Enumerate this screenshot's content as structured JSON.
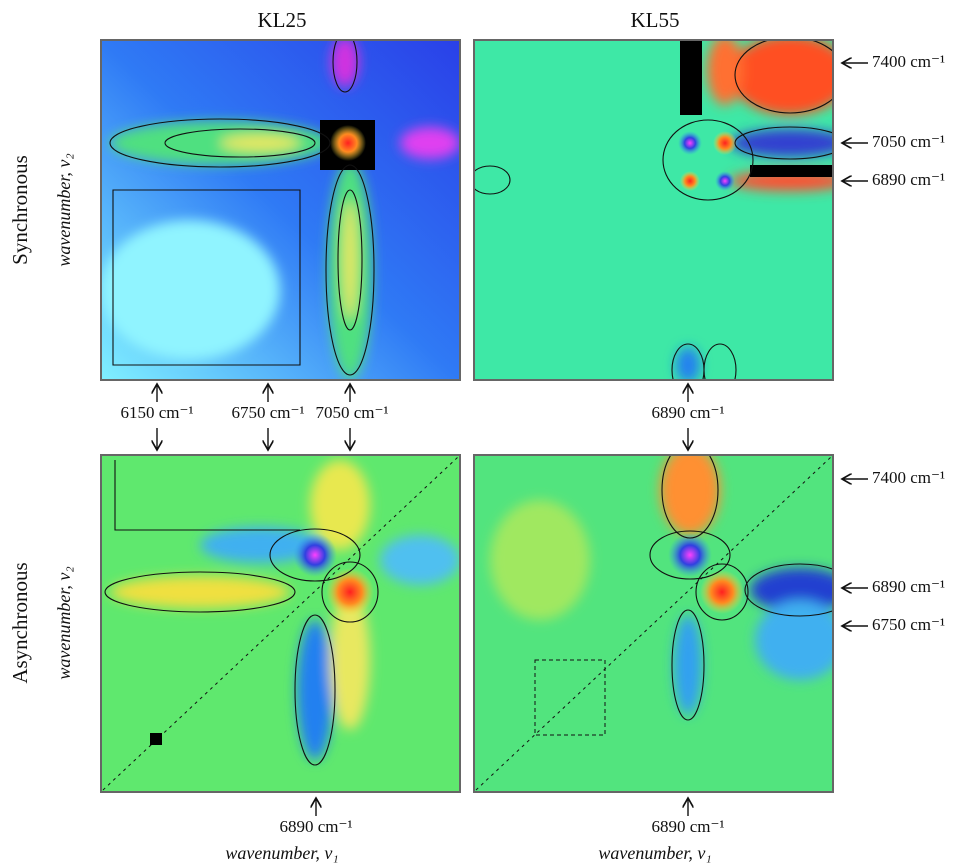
{
  "column_titles": [
    "KL25",
    "KL55"
  ],
  "row_titles": [
    "Synchronous",
    "Asynchronous"
  ],
  "row_axis_labels": [
    "wavenumber, ν₂",
    "wavenumber, ν₂"
  ],
  "column_axis_labels": [
    "wavenumber, ν₁",
    "wavenumber, ν₁"
  ],
  "sync_right_marks": [
    "7400 cm⁻¹",
    "7050 cm⁻¹",
    "6890 cm⁻¹"
  ],
  "sync_kl25_below_marks": [
    "6150 cm⁻¹",
    "6750 cm⁻¹",
    "7050 cm⁻¹"
  ],
  "sync_kl55_below_marks": [
    "6890 cm⁻¹"
  ],
  "async_right_marks": [
    "7400 cm⁻¹",
    "6890 cm⁻¹",
    "6750 cm⁻¹"
  ],
  "async_below_marks": [
    "6890 cm⁻¹",
    "6890 cm⁻¹"
  ]
}
